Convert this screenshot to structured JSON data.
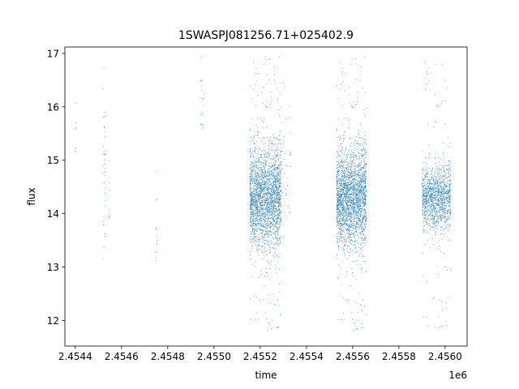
{
  "chart_data": {
    "type": "scatter",
    "title": "1SWASPJ081256.71+025402.9",
    "xlabel": "time",
    "ylabel": "flux",
    "x_offset_label": "1e6",
    "xlim": [
      2454355,
      2456095
    ],
    "ylim": [
      11.52,
      17.12
    ],
    "x_ticks": [
      2454400,
      2454600,
      2454800,
      2455000,
      2455200,
      2455400,
      2455600,
      2455800,
      2456000
    ],
    "x_tick_labels": [
      "2.4544",
      "2.4546",
      "2.4548",
      "2.4550",
      "2.4552",
      "2.4554",
      "2.4556",
      "2.4558",
      "2.4560"
    ],
    "y_ticks": [
      12,
      13,
      14,
      15,
      16,
      17
    ],
    "y_tick_labels": [
      "12",
      "13",
      "14",
      "15",
      "16",
      "17"
    ],
    "grid": false,
    "marker_color": "#1f77b4",
    "series": [
      {
        "clusters": [
          {
            "x_start": 2454400,
            "x_end": 2454402,
            "count": 8,
            "flux_center": 15.5,
            "flux_spread": 0.35,
            "flux_min": 15.0,
            "flux_max": 16.25
          },
          {
            "x_start": 2454520,
            "x_end": 2454532,
            "count": 40,
            "flux_center": 14.8,
            "flux_spread": 0.9,
            "flux_min": 12.3,
            "flux_max": 16.8
          },
          {
            "x_start": 2454545,
            "x_end": 2454552,
            "count": 10,
            "flux_center": 14.3,
            "flux_spread": 0.5,
            "flux_min": 13.9,
            "flux_max": 15.0
          },
          {
            "x_start": 2454748,
            "x_end": 2454755,
            "count": 14,
            "flux_center": 13.6,
            "flux_spread": 0.6,
            "flux_min": 13.1,
            "flux_max": 16.9
          },
          {
            "x_start": 2454940,
            "x_end": 2454958,
            "count": 22,
            "flux_center": 16.1,
            "flux_spread": 0.4,
            "flux_min": 15.6,
            "flux_max": 16.95
          },
          {
            "x_start": 2455155,
            "x_end": 2455290,
            "count": 2600,
            "flux_center": 14.3,
            "flux_spread": 0.45,
            "flux_min": 11.75,
            "flux_max": 16.95
          },
          {
            "x_start": 2455290,
            "x_end": 2455335,
            "count": 40,
            "flux_center": 14.9,
            "flux_spread": 0.6,
            "flux_min": 13.5,
            "flux_max": 16.5
          },
          {
            "x_start": 2455530,
            "x_end": 2455660,
            "count": 2600,
            "flux_center": 14.3,
            "flux_spread": 0.45,
            "flux_min": 11.75,
            "flux_max": 16.95
          },
          {
            "x_start": 2455900,
            "x_end": 2456025,
            "count": 1400,
            "flux_center": 14.3,
            "flux_spread": 0.3,
            "flux_min": 11.8,
            "flux_max": 16.95
          }
        ]
      }
    ]
  }
}
